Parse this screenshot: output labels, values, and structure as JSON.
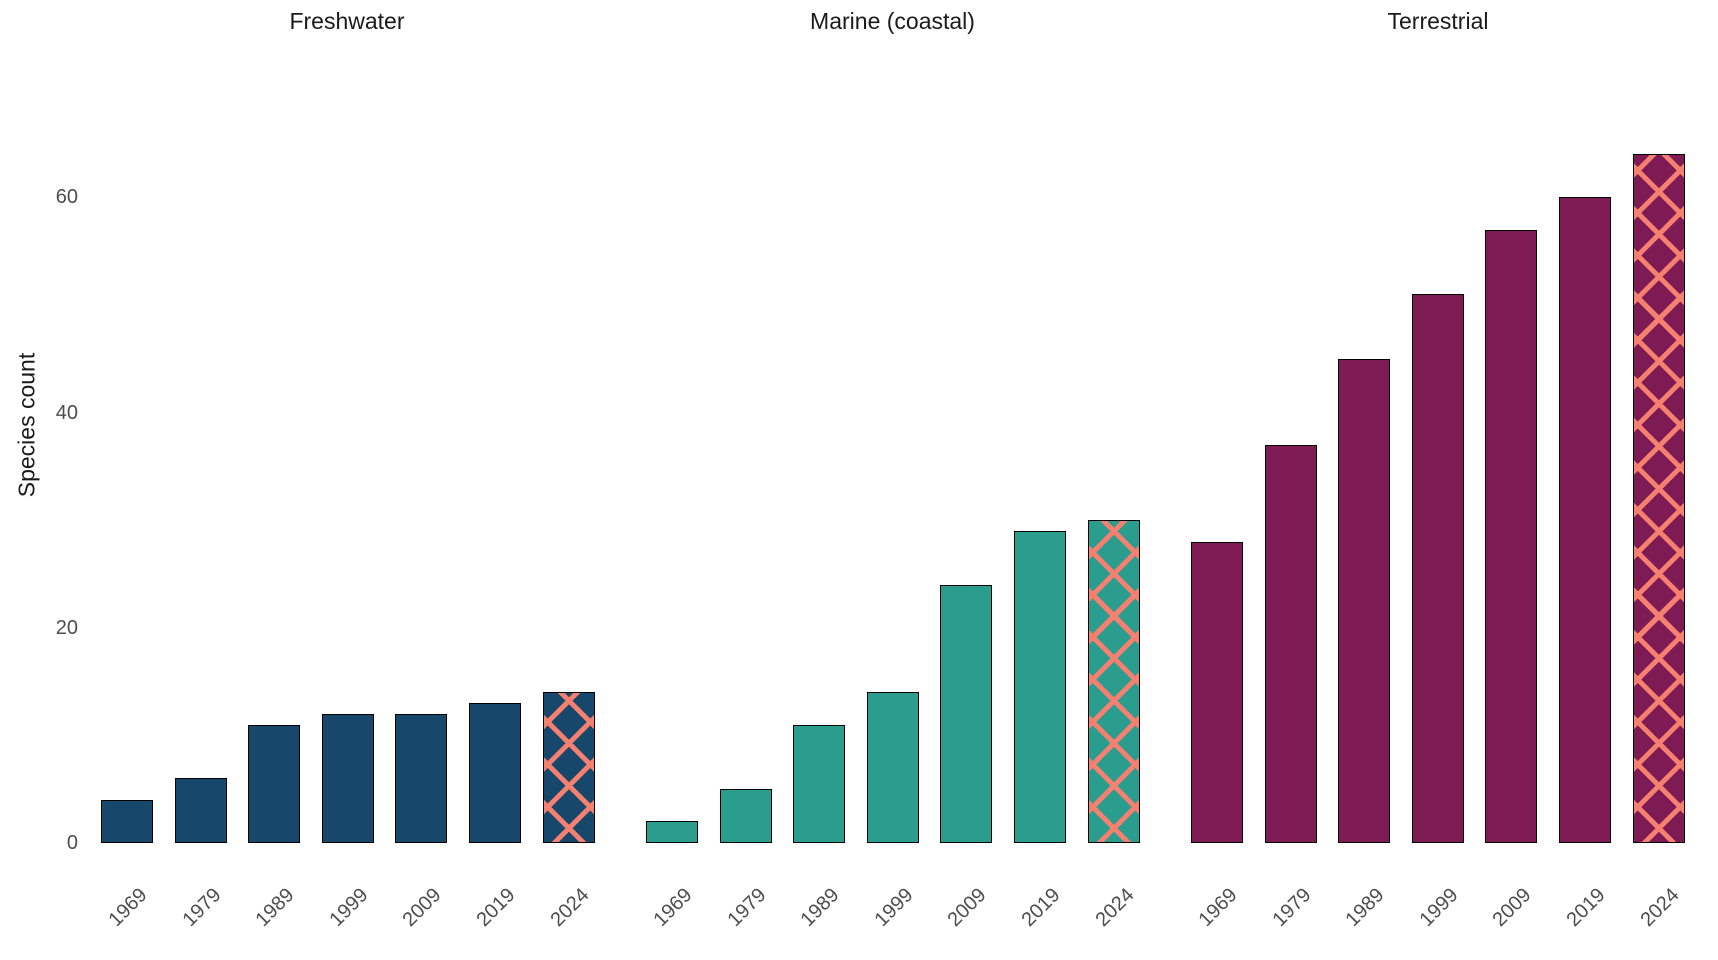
{
  "chart_data": {
    "type": "bar",
    "title": "",
    "xlabel": "",
    "ylabel": "Species count",
    "categories": [
      "1969",
      "1979",
      "1989",
      "1999",
      "2009",
      "2019",
      "2024"
    ],
    "y_ticks": [
      0,
      20,
      40,
      60
    ],
    "ylim": [
      0,
      66
    ],
    "facets": [
      {
        "label": "Freshwater",
        "color": "#17476b",
        "values": [
          4,
          6,
          11,
          12,
          12,
          13,
          14
        ]
      },
      {
        "label": "Marine (coastal)",
        "color": "#2a9d8f",
        "values": [
          2,
          5,
          11,
          14,
          24,
          29,
          30
        ]
      },
      {
        "label": "Terrestrial",
        "color": "#7e1a54",
        "values": [
          28,
          37,
          45,
          51,
          57,
          60,
          64
        ]
      }
    ],
    "hatched_category": "2024",
    "hatch_color": "#f5806f",
    "bar_outline_color": "#000000",
    "text_color_titles": "#1a1a1a",
    "text_color_ticks": "#4d4d4d",
    "layout": {
      "background": "#ffffff",
      "grid": "off",
      "axis_lines": "none",
      "legend": "none",
      "x_label_angle_deg": 45
    }
  }
}
